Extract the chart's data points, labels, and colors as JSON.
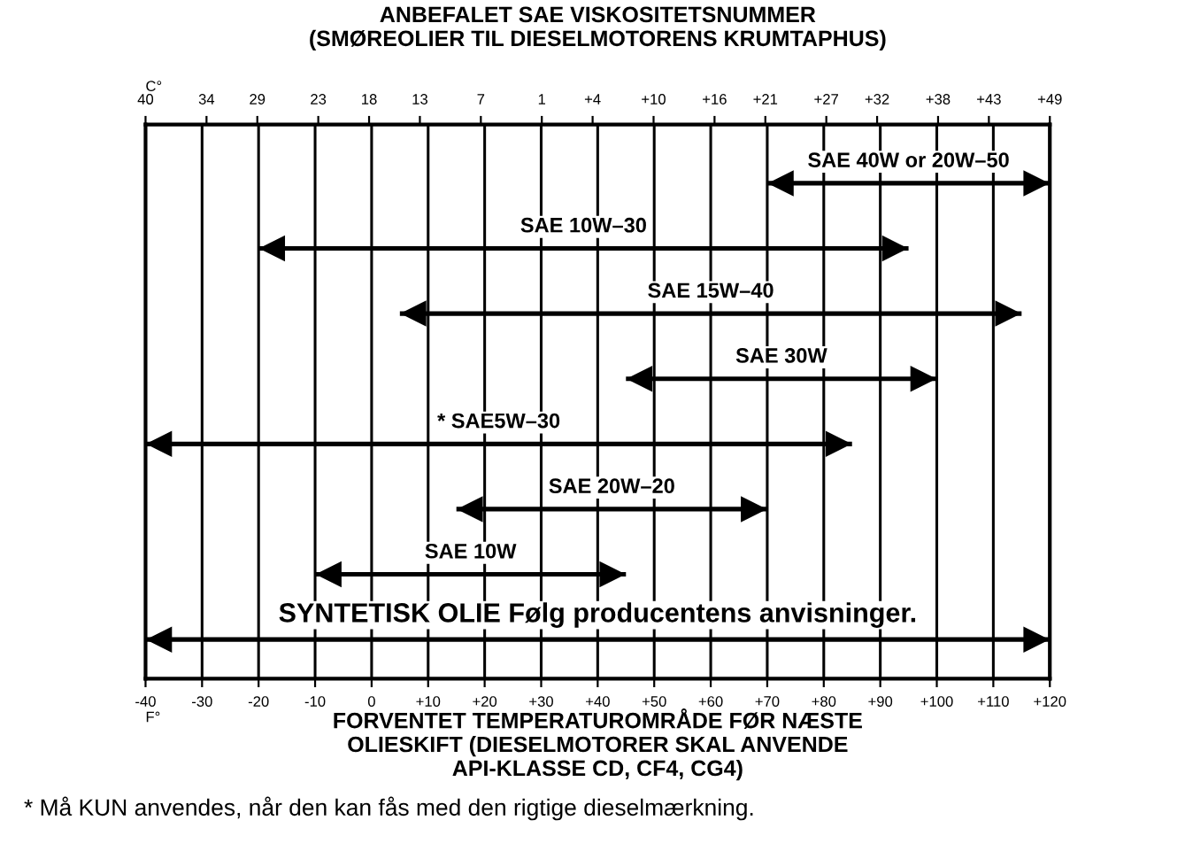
{
  "chart_data": {
    "type": "bar",
    "orientation": "horizontal",
    "title": "ANBEFALET SAE VISKOSITETSNUMMER\n(SMØREOLIER TIL DIESELMOTORENS KRUMTAPHUS)",
    "xlabel": "FORVENTET TEMPERATUROMRÅDE FØR NÆSTE\nOLIESKIFT (DIESELMOTORER SKAL ANVENDE\nAPI-KLASSE CD, CF4, CG4)",
    "x2label": "C°",
    "categories": [
      "SAE 40W or 20W–50",
      "SAE 10W–30",
      "SAE 15W–40",
      "SAE 30W",
      "* SAE5W–30",
      "SAE 20W–20",
      "SAE 10W",
      "SYNTETISK OLIE Følg producentens anvisninger."
    ],
    "base": [
      70,
      -20,
      5,
      45,
      -40,
      15,
      -10,
      -40
    ],
    "values": [
      50,
      115,
      110,
      55,
      125,
      55,
      55,
      160
    ],
    "color": "#000000",
    "xlim": [
      -40,
      120
    ],
    "xticks": [
      {
        "value": -40,
        "label": "-40"
      },
      {
        "value": -30,
        "label": "-30"
      },
      {
        "value": -20,
        "label": "-20"
      },
      {
        "value": -10,
        "label": "-10"
      },
      0,
      {
        "value": 10,
        "label": "+10"
      },
      {
        "value": 20,
        "label": "+20"
      },
      {
        "value": 30,
        "label": "+30"
      },
      {
        "value": 40,
        "label": "+40"
      },
      {
        "value": 50,
        "label": "+50"
      },
      {
        "value": 60,
        "label": "+60"
      },
      {
        "value": 70,
        "label": "+70"
      },
      {
        "value": 80,
        "label": "+80"
      },
      {
        "value": 90,
        "label": "+90"
      },
      {
        "value": 100,
        "label": "+100"
      },
      {
        "value": 110,
        "label": "+110"
      },
      {
        "value": 120,
        "label": "+120"
      }
    ],
    "x2lim": [
      -40,
      49
    ],
    "x2ticks": [
      {
        "value": -40,
        "label": "40"
      },
      {
        "value": -34,
        "label": "34"
      },
      {
        "value": -29,
        "label": "29"
      },
      {
        "value": -23,
        "label": "23"
      },
      {
        "value": -18,
        "label": "18"
      },
      {
        "value": -13,
        "label": "13"
      },
      {
        "value": -7,
        "label": "7"
      },
      {
        "value": -1,
        "label": "1"
      },
      {
        "value": 4,
        "label": "+4"
      },
      {
        "value": 10,
        "label": "+10"
      },
      {
        "value": 16,
        "label": "+16"
      },
      {
        "value": 21,
        "label": "+21"
      },
      {
        "value": 27,
        "label": "+27"
      },
      {
        "value": 32,
        "label": "+32"
      },
      {
        "value": 38,
        "label": "+38"
      },
      {
        "value": 43,
        "label": "+43"
      },
      {
        "value": 49,
        "label": "+49"
      }
    ],
    "grid": "x",
    "annotations": [
      "F°",
      "* Må KUN anvendes, når den kan fås med den rigtige dieselmærkning."
    ]
  }
}
